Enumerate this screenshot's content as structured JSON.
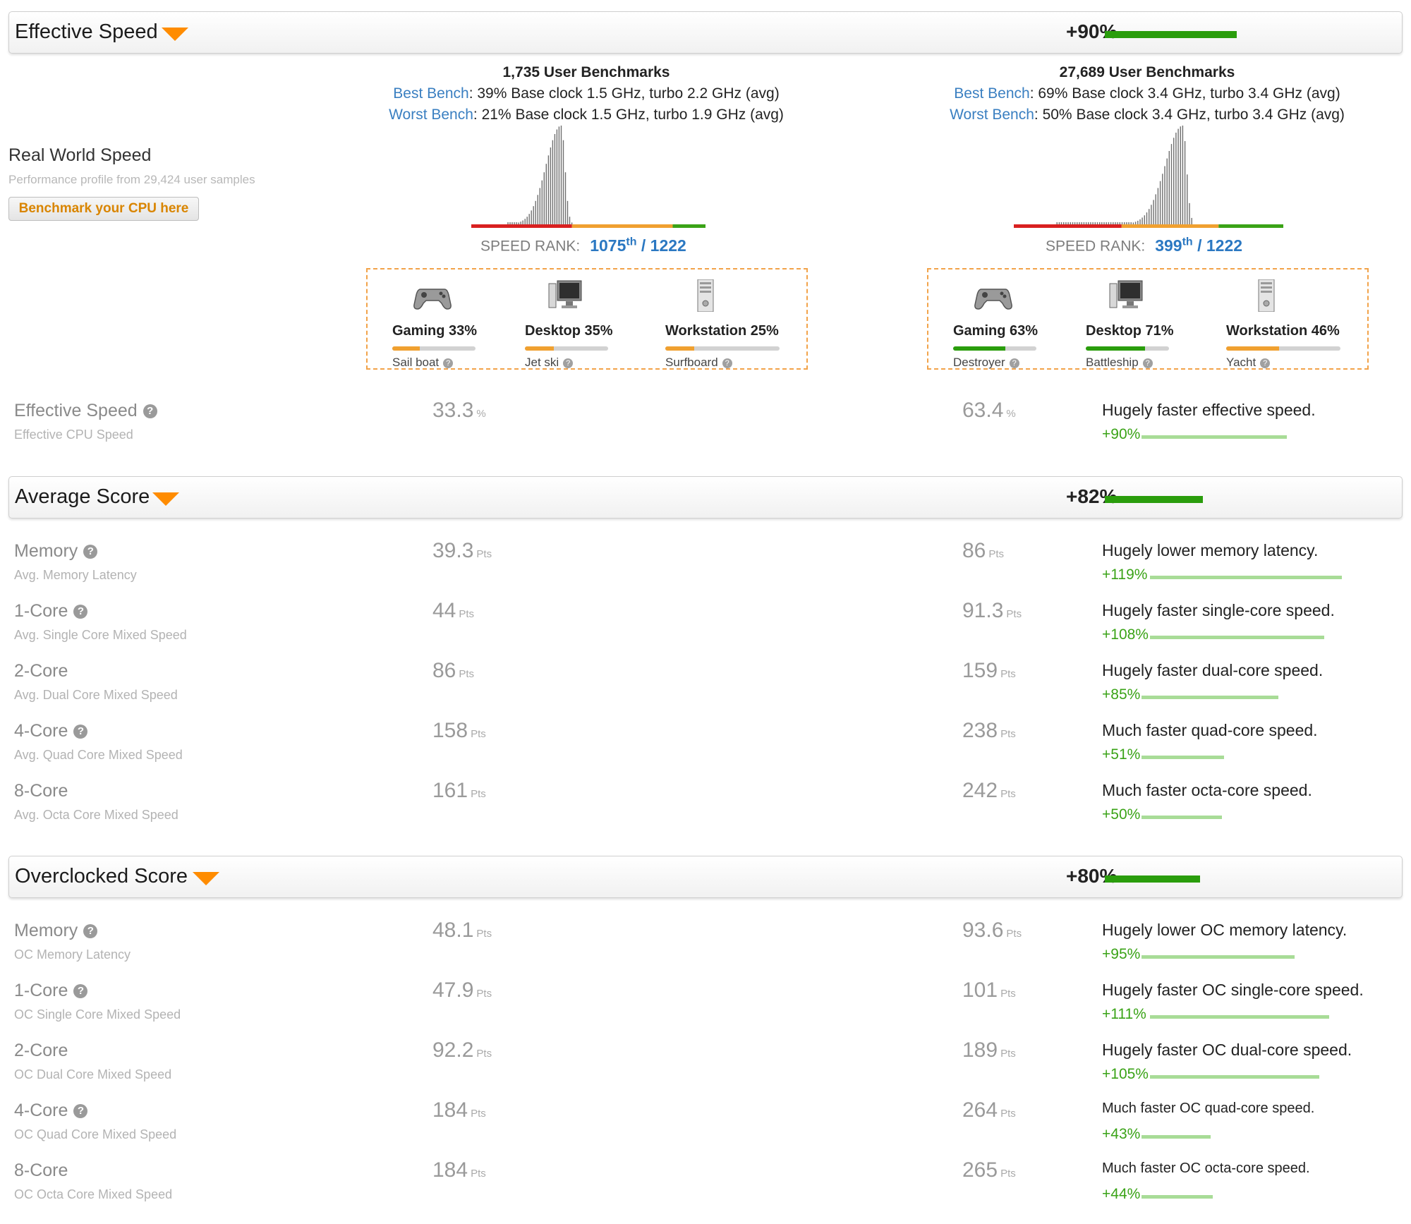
{
  "sections": {
    "effective": {
      "title": "Effective Speed",
      "pct": "+90%"
    },
    "average": {
      "title": "Average Score",
      "pct": "+82%"
    },
    "overclocked": {
      "title": "Overclocked Score",
      "pct": "+80%"
    }
  },
  "real_world": {
    "title": "Real World Speed",
    "subtitle": "Performance profile from 29,424 user samples",
    "button": "Benchmark your CPU here"
  },
  "cpu_left": {
    "benchmarks": "1,735 User Benchmarks",
    "best_label": "Best Bench",
    "best_text": ": 39% Base clock 1.5 GHz, turbo 2.2 GHz (avg)",
    "worst_label": "Worst Bench",
    "worst_text": ": 21% Base clock 1.5 GHz, turbo 1.9 GHz (avg)",
    "rank_label": "SPEED RANK:",
    "rank_value": "1075",
    "rank_suffix": "th",
    "rank_total": " / 1222",
    "profiles": [
      {
        "title": "Gaming 33%",
        "name": "Sail boat",
        "value": 0.33,
        "color": "#f0a030"
      },
      {
        "title": "Desktop 35%",
        "name": "Jet ski",
        "value": 0.35,
        "color": "#f0a030"
      },
      {
        "title": "Workstation 25%",
        "name": "Surfboard",
        "value": 0.25,
        "color": "#f0a030"
      }
    ]
  },
  "cpu_right": {
    "benchmarks": "27,689 User Benchmarks",
    "best_label": "Best Bench",
    "best_text": ": 69% Base clock 3.4 GHz, turbo 3.4 GHz (avg)",
    "worst_label": "Worst Bench",
    "worst_text": ": 50% Base clock 3.4 GHz, turbo 3.4 GHz (avg)",
    "rank_label": "SPEED RANK:",
    "rank_value": "399",
    "rank_suffix": "th",
    "rank_total": " / 1222",
    "profiles": [
      {
        "title": "Gaming 63%",
        "name": "Destroyer",
        "value": 0.63,
        "color": "#2a9d0c"
      },
      {
        "title": "Desktop 71%",
        "name": "Battleship",
        "value": 0.71,
        "color": "#2a9d0c"
      },
      {
        "title": "Workstation 46%",
        "name": "Yacht",
        "value": 0.46,
        "color": "#f0a030"
      }
    ]
  },
  "effective_row": {
    "label": "Effective Speed",
    "sub": "Effective CPU Speed",
    "left": "33.3",
    "right": "63.4",
    "unit": "%",
    "verdict": "Hugely faster effective speed.",
    "diff": "+90%",
    "diff_value": 0.9
  },
  "average_rows": [
    {
      "label": "Memory",
      "help": true,
      "sub": "Avg. Memory Latency",
      "left": "39.3",
      "right": "86",
      "unit": "Pts",
      "verdict": "Hugely lower memory latency.",
      "diff": "+119%",
      "diff_value": 1.19
    },
    {
      "label": "1-Core",
      "help": true,
      "sub": "Avg. Single Core Mixed Speed",
      "left": "44",
      "right": "91.3",
      "unit": "Pts",
      "verdict": "Hugely faster single-core speed.",
      "diff": "+108%",
      "diff_value": 1.08
    },
    {
      "label": "2-Core",
      "help": false,
      "sub": "Avg. Dual Core Mixed Speed",
      "left": "86",
      "right": "159",
      "unit": "Pts",
      "verdict": "Hugely faster dual-core speed.",
      "diff": "+85%",
      "diff_value": 0.85
    },
    {
      "label": "4-Core",
      "help": true,
      "sub": "Avg. Quad Core Mixed Speed",
      "left": "158",
      "right": "238",
      "unit": "Pts",
      "verdict": "Much faster quad-core speed.",
      "diff": "+51%",
      "diff_value": 0.51
    },
    {
      "label": "8-Core",
      "help": false,
      "sub": "Avg. Octa Core Mixed Speed",
      "left": "161",
      "right": "242",
      "unit": "Pts",
      "verdict": "Much faster octa-core speed.",
      "diff": "+50%",
      "diff_value": 0.5
    }
  ],
  "oc_rows": [
    {
      "label": "Memory",
      "help": true,
      "sub": "OC Memory Latency",
      "left": "48.1",
      "right": "93.6",
      "unit": "Pts",
      "verdict": "Hugely lower OC memory latency.",
      "diff": "+95%",
      "diff_value": 0.95
    },
    {
      "label": "1-Core",
      "help": true,
      "sub": "OC Single Core Mixed Speed",
      "left": "47.9",
      "right": "101",
      "unit": "Pts",
      "verdict": "Hugely faster OC single-core speed.",
      "diff": "+111%",
      "diff_value": 1.11
    },
    {
      "label": "2-Core",
      "help": false,
      "sub": "OC Dual Core Mixed Speed",
      "left": "92.2",
      "right": "189",
      "unit": "Pts",
      "verdict": "Hugely faster OC dual-core speed.",
      "diff": "+105%",
      "diff_value": 1.05
    },
    {
      "label": "4-Core",
      "help": true,
      "sub": "OC Quad Core Mixed Speed",
      "left": "184",
      "right": "264",
      "unit": "Pts",
      "verdict": "Much faster OC quad-core speed.",
      "diff": "+43%",
      "diff_value": 0.43
    },
    {
      "label": "8-Core",
      "help": false,
      "sub": "OC Octa Core Mixed Speed",
      "left": "184",
      "right": "265",
      "unit": "Pts",
      "verdict": "Much faster OC octa-core speed.",
      "diff": "+44%",
      "diff_value": 0.44
    }
  ]
}
